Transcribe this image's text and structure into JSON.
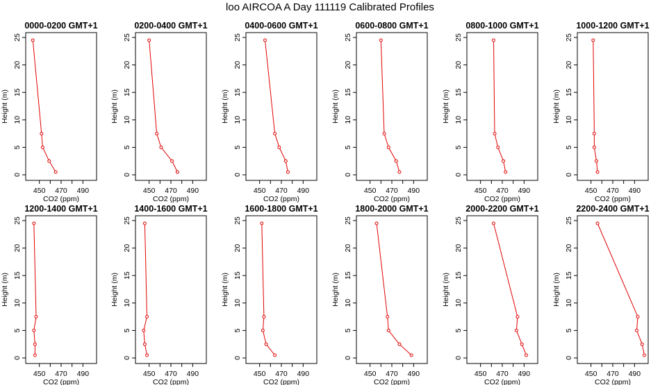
{
  "figure": {
    "title": "loo AIRCOA A  Day 111119  Calibrated Profiles",
    "series_color": "#e00000"
  },
  "chart_data": [
    {
      "type": "line",
      "title": "0000-0200 GMT+1",
      "xlabel": "CO2 (ppm)",
      "ylabel": "Height (m)",
      "xlim": [
        440,
        500
      ],
      "ylim": [
        0,
        25
      ],
      "xticks": [
        450,
        470,
        490
      ],
      "yticks": [
        0,
        5,
        10,
        15,
        20,
        25
      ],
      "x": [
        444,
        452,
        453,
        459,
        465
      ],
      "y": [
        24.5,
        7.5,
        5,
        2.5,
        0.5
      ]
    },
    {
      "type": "line",
      "title": "0200-0400 GMT+1",
      "xlabel": "CO2 (ppm)",
      "ylabel": "Height (m)",
      "xlim": [
        440,
        500
      ],
      "ylim": [
        0,
        25
      ],
      "xticks": [
        450,
        470,
        490
      ],
      "yticks": [
        0,
        5,
        10,
        15,
        20,
        25
      ],
      "x": [
        450,
        457,
        461,
        471,
        476
      ],
      "y": [
        24.5,
        7.5,
        5,
        2.5,
        0.5
      ]
    },
    {
      "type": "line",
      "title": "0400-0600 GMT+1",
      "xlabel": "CO2 (ppm)",
      "ylabel": "Height (m)",
      "xlim": [
        440,
        500
      ],
      "ylim": [
        0,
        25
      ],
      "xticks": [
        450,
        470,
        490
      ],
      "yticks": [
        0,
        5,
        10,
        15,
        20,
        25
      ],
      "x": [
        455,
        464,
        468,
        474,
        476
      ],
      "y": [
        24.5,
        7.5,
        5,
        2.5,
        0.5
      ]
    },
    {
      "type": "line",
      "title": "0600-0800 GMT+1",
      "xlabel": "CO2 (ppm)",
      "ylabel": "Height (m)",
      "xlim": [
        440,
        500
      ],
      "ylim": [
        0,
        25
      ],
      "xticks": [
        450,
        470,
        490
      ],
      "yticks": [
        0,
        5,
        10,
        15,
        20,
        25
      ],
      "x": [
        460,
        463,
        467,
        474,
        477
      ],
      "y": [
        24.5,
        7.5,
        5,
        2.5,
        0.5
      ]
    },
    {
      "type": "line",
      "title": "0800-1000 GMT+1",
      "xlabel": "CO2 (ppm)",
      "ylabel": "Height (m)",
      "xlim": [
        440,
        500
      ],
      "ylim": [
        0,
        25
      ],
      "xticks": [
        450,
        470,
        490
      ],
      "yticks": [
        0,
        5,
        10,
        15,
        20,
        25
      ],
      "x": [
        462,
        463,
        466,
        471,
        473
      ],
      "y": [
        24.5,
        7.5,
        5,
        2.5,
        0.5
      ]
    },
    {
      "type": "line",
      "title": "1000-1200 GMT+1",
      "xlabel": "CO2 (ppm)",
      "ylabel": "Height (m)",
      "xlim": [
        440,
        500
      ],
      "ylim": [
        0,
        25
      ],
      "xticks": [
        450,
        470,
        490
      ],
      "yticks": [
        0,
        5,
        10,
        15,
        20,
        25
      ],
      "x": [
        452,
        453,
        453,
        455,
        456
      ],
      "y": [
        24.5,
        7.5,
        5,
        2.5,
        0.5
      ]
    },
    {
      "type": "line",
      "title": "1200-1400 GMT+1",
      "xlabel": "CO2 (ppm)",
      "ylabel": "Height (m)",
      "xlim": [
        440,
        500
      ],
      "ylim": [
        0,
        25
      ],
      "xticks": [
        450,
        470,
        490
      ],
      "yticks": [
        0,
        5,
        10,
        15,
        20,
        25
      ],
      "x": [
        445,
        447,
        445,
        446,
        446
      ],
      "y": [
        24.5,
        7.5,
        5,
        2.5,
        0.5
      ]
    },
    {
      "type": "line",
      "title": "1400-1600 GMT+1",
      "xlabel": "CO2 (ppm)",
      "ylabel": "Height (m)",
      "xlim": [
        440,
        500
      ],
      "ylim": [
        0,
        25
      ],
      "xticks": [
        450,
        470,
        490
      ],
      "yticks": [
        0,
        5,
        10,
        15,
        20,
        25
      ],
      "x": [
        446,
        448,
        445,
        446,
        448
      ],
      "y": [
        24.5,
        7.5,
        5,
        2.5,
        0.5
      ]
    },
    {
      "type": "line",
      "title": "1600-1800 GMT+1",
      "xlabel": "CO2 (ppm)",
      "ylabel": "Height (m)",
      "xlim": [
        440,
        500
      ],
      "ylim": [
        0,
        25
      ],
      "xticks": [
        450,
        470,
        490
      ],
      "yticks": [
        0,
        5,
        10,
        15,
        20,
        25
      ],
      "x": [
        452,
        454,
        453,
        456,
        464
      ],
      "y": [
        24.5,
        7.5,
        5,
        2.5,
        0.5
      ]
    },
    {
      "type": "line",
      "title": "1800-2000 GMT+1",
      "xlabel": "CO2 (ppm)",
      "ylabel": "Height (m)",
      "xlim": [
        440,
        500
      ],
      "ylim": [
        0,
        25
      ],
      "xticks": [
        450,
        470,
        490
      ],
      "yticks": [
        0,
        5,
        10,
        15,
        20,
        25
      ],
      "x": [
        456,
        466,
        467,
        477,
        488
      ],
      "y": [
        24.5,
        7.5,
        5,
        2.5,
        0.5
      ]
    },
    {
      "type": "line",
      "title": "2000-2200 GMT+1",
      "xlabel": "CO2 (ppm)",
      "ylabel": "Height (m)",
      "xlim": [
        440,
        500
      ],
      "ylim": [
        0,
        25
      ],
      "xticks": [
        450,
        470,
        490
      ],
      "yticks": [
        0,
        5,
        10,
        15,
        20,
        25
      ],
      "x": [
        462,
        484,
        483,
        488,
        492
      ],
      "y": [
        24.5,
        7.5,
        5,
        2.5,
        0.5
      ]
    },
    {
      "type": "line",
      "title": "2200-2400 GMT+1",
      "xlabel": "CO2 (ppm)",
      "ylabel": "Height (m)",
      "xlim": [
        440,
        500
      ],
      "ylim": [
        0,
        25
      ],
      "xticks": [
        450,
        470,
        490
      ],
      "yticks": [
        0,
        5,
        10,
        15,
        20,
        25
      ],
      "x": [
        456,
        493,
        492,
        497,
        499
      ],
      "y": [
        24.5,
        7.5,
        5,
        2.5,
        0.5
      ]
    }
  ]
}
